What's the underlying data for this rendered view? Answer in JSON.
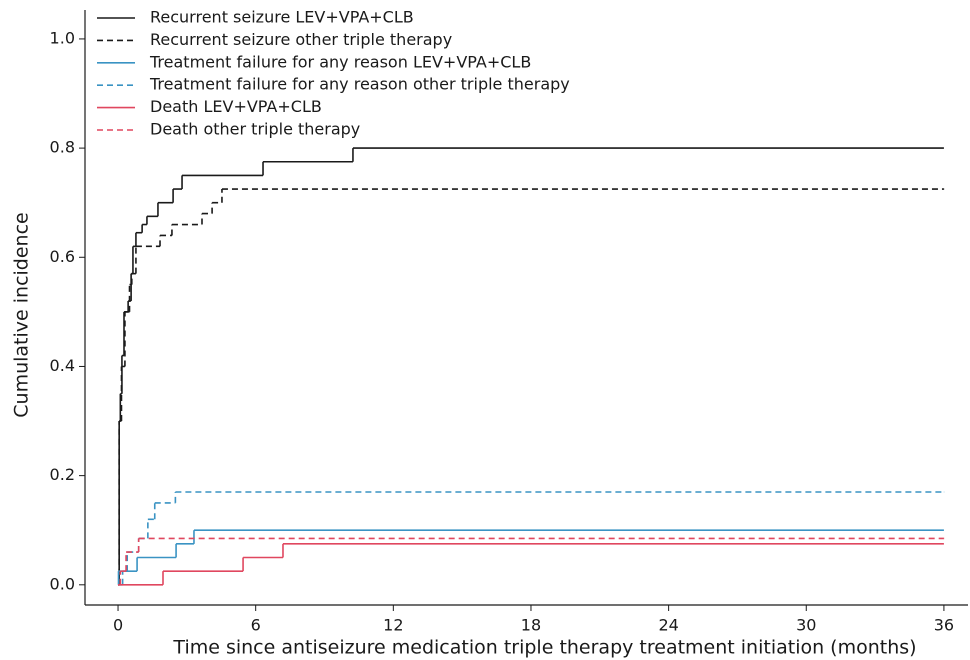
{
  "chart_data": {
    "type": "step",
    "x_label": "Time since antiseizure medication triple therapy treatment initiation (months)",
    "y_label": "Cumulative incidence",
    "xlim": [
      -1.44,
      37.05
    ],
    "xticks": [
      0,
      6,
      12,
      18,
      24,
      30,
      36
    ],
    "ylim": [
      -0.037,
      1.053
    ],
    "yticks": [
      {
        "value": 0,
        "label": "0.0"
      },
      0.2,
      0.4,
      0.6,
      0.8,
      {
        "value": 1,
        "label": "1.0"
      }
    ],
    "legend": "upper left",
    "series": [
      {
        "name": "Recurrent seizure LEV+VPA+CLB",
        "color": "#1a1a1a",
        "dashed": false,
        "x": [
          0,
          0.05,
          0.1,
          0.17,
          0.26,
          0.44,
          0.57,
          0.65,
          0.78,
          1.05,
          1.26,
          1.74,
          2.4,
          2.79,
          6.32,
          10.24,
          36
        ],
        "values": [
          0,
          0.3,
          0.35,
          0.42,
          0.5,
          0.52,
          0.57,
          0.62,
          0.645,
          0.66,
          0.675,
          0.7,
          0.725,
          0.75,
          0.775,
          0.8,
          0.8
        ]
      },
      {
        "name": "Recurrent seizure other triple therapy",
        "color": "#1a1a1a",
        "dashed": true,
        "x": [
          0,
          0.05,
          0.15,
          0.3,
          0.5,
          0.6,
          0.78,
          1.83,
          2.35,
          3.66,
          4.1,
          4.53,
          36
        ],
        "values": [
          0,
          0.3,
          0.4,
          0.5,
          0.55,
          0.57,
          0.62,
          0.64,
          0.66,
          0.68,
          0.7,
          0.725,
          0.725
        ]
      },
      {
        "name": "Treatment failure for any reason LEV+VPA+CLB",
        "color": "#3a93c3",
        "dashed": false,
        "x": [
          0,
          0.02,
          0.83,
          2.53,
          3.31,
          36
        ],
        "values": [
          0,
          0.025,
          0.05,
          0.075,
          0.1,
          0.1
        ]
      },
      {
        "name": "Treatment failure for any reason other triple therapy",
        "color": "#3a93c3",
        "dashed": true,
        "x": [
          0,
          0.2,
          0.4,
          0.9,
          1.3,
          1.6,
          2.5,
          36
        ],
        "values": [
          0,
          0.025,
          0.06,
          0.085,
          0.12,
          0.15,
          0.17,
          0.17
        ]
      },
      {
        "name": "Death LEV+VPA+CLB",
        "color": "#e0475f",
        "dashed": false,
        "x": [
          0,
          1.96,
          5.45,
          7.19,
          36
        ],
        "values": [
          0,
          0.025,
          0.05,
          0.075,
          0.075
        ]
      },
      {
        "name": "Death other triple therapy",
        "color": "#e0475f",
        "dashed": true,
        "x": [
          0,
          0.1,
          0.35,
          0.9,
          36
        ],
        "values": [
          0,
          0.025,
          0.06,
          0.085,
          0.085
        ]
      }
    ]
  }
}
